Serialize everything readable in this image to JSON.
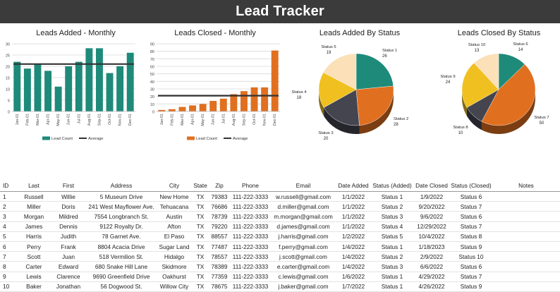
{
  "title": "Lead Tracker",
  "colors": {
    "teal": "#1e8a7a",
    "orange": "#e07020",
    "avg_line": "#333333",
    "pie": [
      "#1e8a7a",
      "#e07020",
      "#454550",
      "#f0c020",
      "#fbe0b8"
    ]
  },
  "chart_data": [
    {
      "type": "bar",
      "title": "Leads Added - Monthly",
      "categories": [
        "Jan-01",
        "Feb-01",
        "Mar-01",
        "Apr-01",
        "May-01",
        "Jun-01",
        "Jul-01",
        "Aug-01",
        "Sep-01",
        "Oct-01",
        "Nov-01",
        "Dec-01"
      ],
      "series": [
        {
          "name": "Lead Count",
          "values": [
            22,
            19,
            21,
            18,
            11,
            20,
            22,
            28,
            28,
            17,
            20,
            26
          ]
        },
        {
          "name": "Average",
          "values": [
            21,
            21,
            21,
            21,
            21,
            21,
            21,
            21,
            21,
            21,
            21,
            21
          ]
        }
      ],
      "ylim": [
        0,
        30
      ],
      "yticks": [
        "0",
        "5",
        "10",
        "15",
        "20",
        "25",
        "30"
      ],
      "grid": true,
      "legend": "bottom"
    },
    {
      "type": "bar",
      "title": "Leads Closed - Monthly",
      "categories": [
        "Jan-01",
        "Feb-01",
        "Mar-01",
        "Apr-01",
        "May-01",
        "Jun-01",
        "Jul-01",
        "Aug-01",
        "Sep-01",
        "Oct-01",
        "Nov-01",
        "Dec-01"
      ],
      "series": [
        {
          "name": "Lead Count",
          "values": [
            2,
            3,
            6,
            8,
            10,
            14,
            17,
            23,
            27,
            32,
            32,
            81
          ]
        },
        {
          "name": "Average",
          "values": [
            21,
            21,
            21,
            21,
            21,
            21,
            21,
            21,
            21,
            21,
            21,
            21
          ]
        }
      ],
      "ylim": [
        0,
        90
      ],
      "yticks": [
        "0",
        "10",
        "20",
        "30",
        "40",
        "50",
        "60",
        "70",
        "80",
        "90"
      ],
      "grid": true,
      "legend": "bottom"
    },
    {
      "type": "pie",
      "title": "Leads Added By Status",
      "labels": [
        "Status 1",
        "Status 2",
        "Status 3",
        "Status 4",
        "Status 5"
      ],
      "values": [
        26,
        28,
        20,
        18,
        19
      ]
    },
    {
      "type": "pie",
      "title": "Leads Closed By Status",
      "labels": [
        "Status 6",
        "Status 7",
        "Status 8",
        "Status 9",
        "Status 10"
      ],
      "values": [
        14,
        50,
        10,
        24,
        13
      ]
    }
  ],
  "table": {
    "headers": [
      "ID",
      "Last",
      "First",
      "Address",
      "City",
      "State",
      "Zip",
      "Phone",
      "Email",
      "Date Added",
      "Status (Added)",
      "Date Closed",
      "Status (Closed)",
      "Notes"
    ],
    "rows": [
      [
        "1",
        "Russell",
        "Willie",
        "5 Museum Drive",
        "New Home",
        "TX",
        "79383",
        "111-222-3333",
        "w.russell@gmail.com",
        "1/1/2022",
        "Status 1",
        "1/9/2022",
        "Status 6",
        ""
      ],
      [
        "2",
        "Miller",
        "Doris",
        "241 West Mayflower Ave.",
        "Tehuacana",
        "TX",
        "76686",
        "111-222-3333",
        "d.miller@gmail.com",
        "1/1/2022",
        "Status 2",
        "9/20/2022",
        "Status 7",
        ""
      ],
      [
        "3",
        "Morgan",
        "Mildred",
        "7554 Longbranch St.",
        "Austin",
        "TX",
        "78739",
        "111-222-3333",
        "m.morgan@gmail.com",
        "1/1/2022",
        "Status 3",
        "9/6/2022",
        "Status 6",
        ""
      ],
      [
        "4",
        "James",
        "Dennis",
        "9122 Royalty Dr.",
        "Afton",
        "TX",
        "79220",
        "111-222-3333",
        "d.james@gmail.com",
        "1/1/2022",
        "Status 4",
        "12/29/2022",
        "Status 7",
        ""
      ],
      [
        "5",
        "Harris",
        "Judith",
        "78 Garnet Ave.",
        "El Paso",
        "TX",
        "88557",
        "111-222-3333",
        "j.harris@gmail.com",
        "1/2/2022",
        "Status 5",
        "10/4/2022",
        "Status 8",
        ""
      ],
      [
        "6",
        "Perry",
        "Frank",
        "8804 Acacia Drive",
        "Sugar Land",
        "TX",
        "77487",
        "111-222-3333",
        "f.perry@gmail.com",
        "1/4/2022",
        "Status 1",
        "1/18/2023",
        "Status 9",
        ""
      ],
      [
        "7",
        "Scott",
        "Juan",
        "518 Vermilion St.",
        "Hidalgo",
        "TX",
        "78557",
        "111-222-3333",
        "j.scott@gmail.com",
        "1/4/2022",
        "Status 2",
        "2/9/2022",
        "Status 10",
        ""
      ],
      [
        "8",
        "Carter",
        "Edward",
        "680 Snake Hill Lane",
        "Skidmore",
        "TX",
        "78389",
        "111-222-3333",
        "e.carter@gmail.com",
        "1/4/2022",
        "Status 3",
        "6/6/2022",
        "Status 6",
        ""
      ],
      [
        "9",
        "Lewis",
        "Clarence",
        "9690 Greenfield Drive",
        "Oakhurst",
        "TX",
        "77359",
        "111-222-3333",
        "c.lewis@gmail.com",
        "1/6/2022",
        "Status 1",
        "4/29/2022",
        "Status 7",
        ""
      ],
      [
        "10",
        "Baker",
        "Jonathan",
        "56 Dogwood St.",
        "Willow City",
        "TX",
        "78675",
        "111-222-3333",
        "j.baker@gmail.com",
        "1/7/2022",
        "Status 1",
        "4/26/2022",
        "Status 9",
        ""
      ]
    ]
  }
}
